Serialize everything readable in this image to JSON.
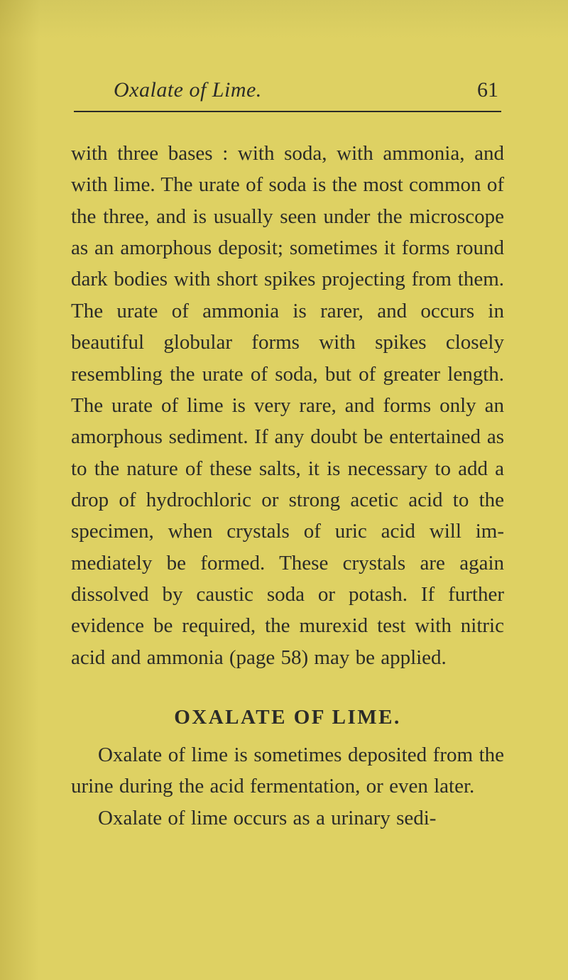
{
  "colors": {
    "paper": "#eee79f",
    "ink": "#2b2b28",
    "shadow_left": "#d9cf81",
    "shadow_top": "#e3dd96"
  },
  "header": {
    "running_title": "Oxalate of Lime.",
    "page_number": "61"
  },
  "paragraphs": {
    "p1": "with three bases : with soda, with ammonia, and with lime. The urate of soda is the most common of the three, and is usually seen under the microscope as an amorphous deposit; sometimes it forms round dark bodies with short spikes projecting from them. The urate of ammonia is rarer, and occurs in beautiful globular forms with spikes closely resembling the urate of soda, but of greater length. The urate of lime is very rare, and forms only an amorphous sediment. If any doubt be entertained as to the nature of these salts, it is necessary to add a drop of hydrochloric or strong acetic acid to the specimen, when crystals of uric acid will im­mediately be formed. These crystals are again dissolved by caustic soda or potash. If further evidence be required, the murexid test with nitric acid and ammonia (page 58) may be applied.",
    "section_title": "OXALATE OF LIME.",
    "p2": "Oxalate of lime is sometimes deposited from the urine during the acid fermentation, or even later.",
    "p3": "Oxalate of lime occurs as a urinary sedi-"
  }
}
